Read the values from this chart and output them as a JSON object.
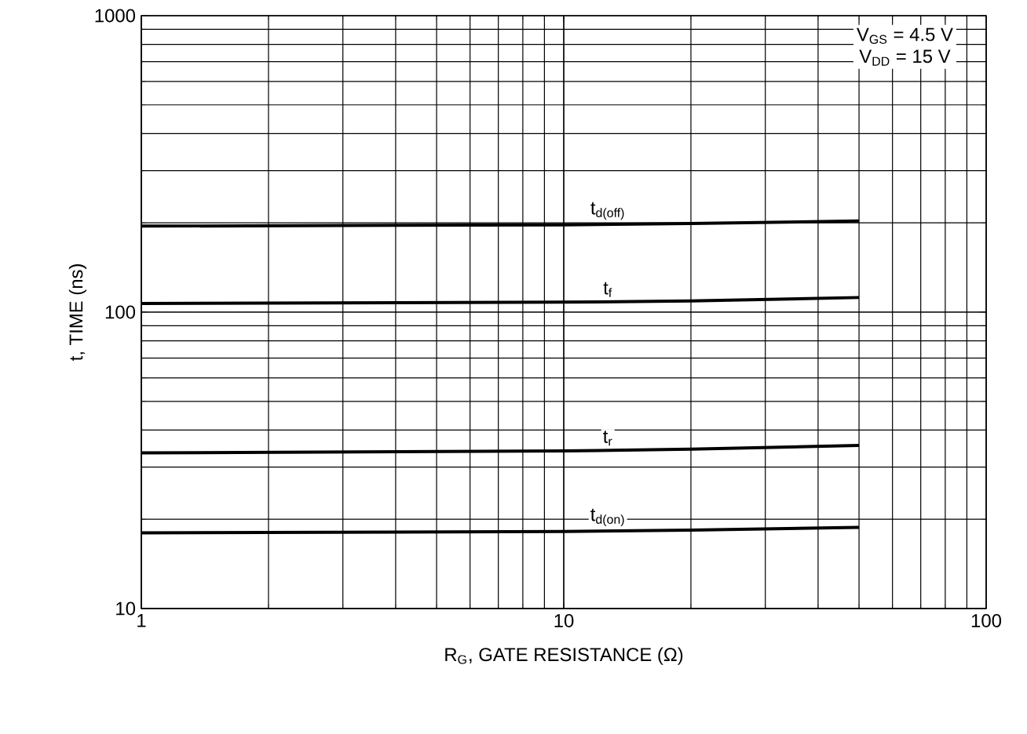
{
  "chart_data": {
    "type": "line",
    "xlabel": "R$_{G}$, GATE RESISTANCE (Ω)",
    "ylabel": "t, TIME (ns)",
    "log": "xy",
    "grid": true,
    "xlim": [
      1,
      100
    ],
    "ylim": [
      10,
      1000
    ],
    "xticks": [
      1,
      10,
      100
    ],
    "yticks": [
      10,
      100,
      1000
    ],
    "annotations": [
      "V$_{GS}$ = 4.5 V",
      "V$_{DD}$ = 15 V"
    ],
    "series": [
      {
        "name": "t$_{d(off)}$",
        "color": "#000000",
        "x": [
          1,
          10,
          20,
          50
        ],
        "values": [
          195,
          197,
          199,
          203
        ]
      },
      {
        "name": "t$_{f}$",
        "color": "#000000",
        "x": [
          1,
          10,
          20,
          50
        ],
        "values": [
          107,
          108,
          109,
          112
        ]
      },
      {
        "name": "t$_{r}$",
        "color": "#000000",
        "x": [
          1,
          10,
          20,
          50
        ],
        "values": [
          33.5,
          34,
          34.5,
          35.5
        ]
      },
      {
        "name": "t$_{d(on)}$",
        "color": "#000000",
        "x": [
          1,
          10,
          20,
          50
        ],
        "values": [
          18,
          18.2,
          18.4,
          18.8
        ]
      }
    ]
  }
}
